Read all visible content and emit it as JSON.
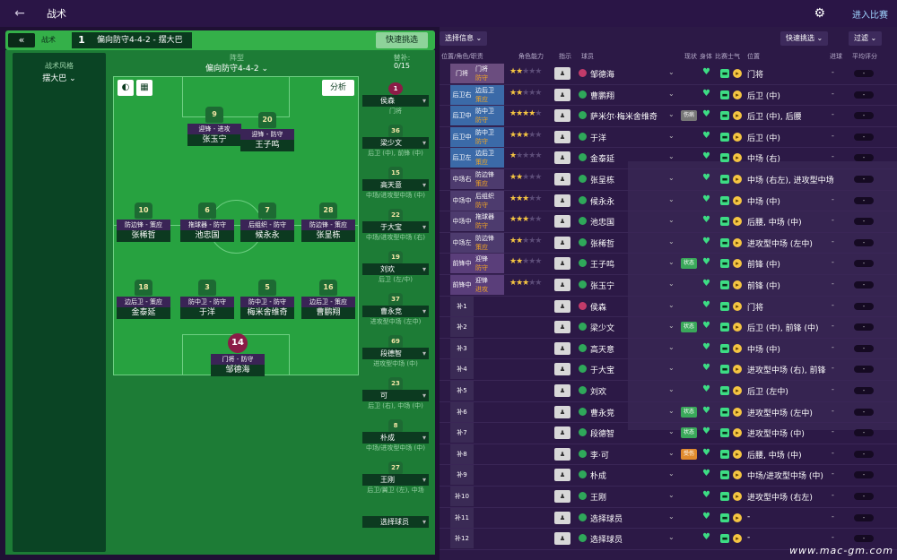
{
  "topbar": {
    "title": "战术",
    "enter": "进入比赛"
  },
  "header": {
    "tactics": "战术",
    "number": "1",
    "formation_name": "偏向防守4-4-2 - 摆大巴",
    "quick": "快速挑选"
  },
  "sidebar": {
    "label": "战术风格",
    "value": "摆大巴 ⌄"
  },
  "formation": {
    "label": "阵型",
    "name": "偏向防守4-4-2 ⌄",
    "analysis": "分析"
  },
  "subs": {
    "label": "替补:",
    "count": "0/15"
  },
  "pitch_players": [
    {
      "num": "9",
      "role": "迎锋 - 进攻",
      "name": "张玉宁"
    },
    {
      "num": "20",
      "role": "迎锋 - 防守",
      "name": "王子鸣"
    },
    {
      "num": "10",
      "role": "防边锋 - 策应",
      "name": "张稀哲"
    },
    {
      "num": "6",
      "role": "拖球器 - 防守",
      "name": "池忠国"
    },
    {
      "num": "7",
      "role": "后组织 - 防守",
      "name": "候永永"
    },
    {
      "num": "28",
      "role": "防边锋 - 策应",
      "name": "张呈栋"
    },
    {
      "num": "18",
      "role": "边后卫 - 策应",
      "name": "金泰延"
    },
    {
      "num": "3",
      "role": "防中卫 - 防守",
      "name": "于洋"
    },
    {
      "num": "5",
      "role": "防中卫 - 防守",
      "name": "梅米舍维奇"
    },
    {
      "num": "16",
      "role": "边后卫 - 策应",
      "name": "曹鹏翔"
    },
    {
      "num": "14",
      "role": "门将 - 防守",
      "name": "邹德海"
    }
  ],
  "bench": [
    {
      "num": "1",
      "name": "侯森",
      "pos": "门将"
    },
    {
      "num": "36",
      "name": "梁少文",
      "pos": "后卫 (中), 前锋 (中)"
    },
    {
      "num": "15",
      "name": "高天意",
      "pos": "中场/进攻型中场 (中)"
    },
    {
      "num": "22",
      "name": "于大宝",
      "pos": "中场/进攻型中场 (右)"
    },
    {
      "num": "19",
      "name": "刘欢",
      "pos": "后卫 (左/中)"
    },
    {
      "num": "37",
      "name": "曹永竞",
      "pos": "进攻型中场 (左中)"
    },
    {
      "num": "69",
      "name": "段德智",
      "pos": "进攻型中场 (中)"
    },
    {
      "num": "23",
      "name": "可",
      "pos": "后卫 (右), 中场 (中)"
    },
    {
      "num": "8",
      "name": "朴成",
      "pos": "中场/进攻型中场 (中)"
    },
    {
      "num": "27",
      "name": "王刚",
      "pos": "后卫/翼卫 (左), 中场"
    },
    {
      "num": "",
      "name": "选择球员",
      "pos": ""
    }
  ],
  "right": {
    "select_info": "选择信息 ⌄",
    "quick": "快速挑选 ⌄",
    "filter": "过滤 ⌄",
    "columns": [
      "位置/角色/职责",
      "角色能力",
      "指示",
      "球员",
      "现状",
      "身体",
      "比赛",
      "士气",
      "位置",
      "进球",
      "平均评分"
    ]
  },
  "rows": [
    {
      "pos": "门将",
      "role": "门将",
      "duty": "防守",
      "stars": 2,
      "name": "邹德海",
      "badge": "",
      "ppos": "门将",
      "r1": "-",
      "r2": "-"
    },
    {
      "pos": "后卫右",
      "role": "边后卫",
      "duty": "策应",
      "stars": 2,
      "name": "曹鹏翔",
      "badge": "",
      "ppos": "后卫 (中)",
      "r1": "-",
      "r2": "-"
    },
    {
      "pos": "后卫中右",
      "role": "防中卫",
      "duty": "防守",
      "stars": 4,
      "name": "萨米尔·梅米舍维奇",
      "badge": "伤病",
      "ppos": "后卫 (中), 后腰",
      "r1": "-",
      "r2": "-"
    },
    {
      "pos": "后卫中左",
      "role": "防中卫",
      "duty": "防守",
      "stars": 3,
      "name": "于洋",
      "badge": "",
      "ppos": "后卫 (中)",
      "r1": "-",
      "r2": "-"
    },
    {
      "pos": "后卫左",
      "role": "边后卫",
      "duty": "策应",
      "stars": 1,
      "name": "金泰延",
      "badge": "",
      "ppos": "中场 (右)",
      "r1": "-",
      "r2": "-"
    },
    {
      "pos": "中场右",
      "role": "防边锋",
      "duty": "策应",
      "stars": 2,
      "name": "张呈栋",
      "badge": "",
      "ppos": "中场 (右左), 进攻型中场",
      "r1": "-",
      "r2": "-"
    },
    {
      "pos": "中场中右",
      "role": "后组织",
      "duty": "防守",
      "stars": 3,
      "name": "候永永",
      "badge": "",
      "ppos": "中场 (中)",
      "r1": "-",
      "r2": "-"
    },
    {
      "pos": "中场中左",
      "role": "拖球器",
      "duty": "防守",
      "stars": 3,
      "name": "池忠国",
      "badge": "",
      "ppos": "后腰, 中场 (中)",
      "r1": "-",
      "r2": "-"
    },
    {
      "pos": "中场左",
      "role": "防边锋",
      "duty": "策应",
      "stars": 2,
      "name": "张稀哲",
      "badge": "",
      "ppos": "进攻型中场 (左中)",
      "r1": "-",
      "r2": "-"
    },
    {
      "pos": "前锋中右",
      "role": "迎锋",
      "duty": "防守",
      "stars": 2,
      "name": "王子鸣",
      "badge": "状态",
      "ppos": "前锋 (中)",
      "r1": "-",
      "r2": "-"
    },
    {
      "pos": "前锋中左",
      "role": "迎锋",
      "duty": "进攻",
      "stars": 3,
      "name": "张玉宁",
      "badge": "",
      "ppos": "前锋 (中)",
      "r1": "-",
      "r2": "-"
    },
    {
      "pos": "补1",
      "role": "",
      "duty": "",
      "stars": 0,
      "name": "侯森",
      "badge": "",
      "ppos": "门将",
      "r1": "-",
      "r2": "-"
    },
    {
      "pos": "补2",
      "role": "",
      "duty": "",
      "stars": 0,
      "name": "梁少文",
      "badge": "状态",
      "ppos": "后卫 (中), 前锋 (中)",
      "r1": "-",
      "r2": "-"
    },
    {
      "pos": "补3",
      "role": "",
      "duty": "",
      "stars": 0,
      "name": "高天意",
      "badge": "",
      "ppos": "中场 (中)",
      "r1": "-",
      "r2": "-"
    },
    {
      "pos": "补4",
      "role": "",
      "duty": "",
      "stars": 0,
      "name": "于大宝",
      "badge": "",
      "ppos": "进攻型中场 (右), 前锋",
      "r1": "-",
      "r2": "-"
    },
    {
      "pos": "补5",
      "role": "",
      "duty": "",
      "stars": 0,
      "name": "刘欢",
      "badge": "",
      "ppos": "后卫 (左中)",
      "r1": "-",
      "r2": "-"
    },
    {
      "pos": "补6",
      "role": "",
      "duty": "",
      "stars": 0,
      "name": "曹永竞",
      "badge": "状态",
      "ppos": "进攻型中场 (左中)",
      "r1": "-",
      "r2": "-"
    },
    {
      "pos": "补7",
      "role": "",
      "duty": "",
      "stars": 0,
      "name": "段德智",
      "badge": "状态",
      "ppos": "进攻型中场 (中)",
      "r1": "-",
      "r2": "-"
    },
    {
      "pos": "补8",
      "role": "",
      "duty": "",
      "stars": 0,
      "name": "李·可",
      "badge": "受伤",
      "ppos": "后腰, 中场 (中)",
      "r1": "-",
      "r2": "-"
    },
    {
      "pos": "补9",
      "role": "",
      "duty": "",
      "stars": 0,
      "name": "朴成",
      "badge": "",
      "ppos": "中场/进攻型中场 (中)",
      "r1": "-",
      "r2": "-"
    },
    {
      "pos": "补10",
      "role": "",
      "duty": "",
      "stars": 0,
      "name": "王刚",
      "badge": "",
      "ppos": "进攻型中场 (右左)",
      "r1": "-",
      "r2": "-"
    },
    {
      "pos": "补11",
      "role": "",
      "duty": "",
      "stars": 0,
      "name": "选择球员",
      "badge": "",
      "ppos": "-",
      "r1": "-",
      "r2": "-"
    },
    {
      "pos": "补12",
      "role": "",
      "duty": "",
      "stars": 0,
      "name": "选择球员",
      "badge": "",
      "ppos": "-",
      "r1": "-",
      "r2": "-"
    }
  ],
  "watermark": "www.mac-gm.com"
}
